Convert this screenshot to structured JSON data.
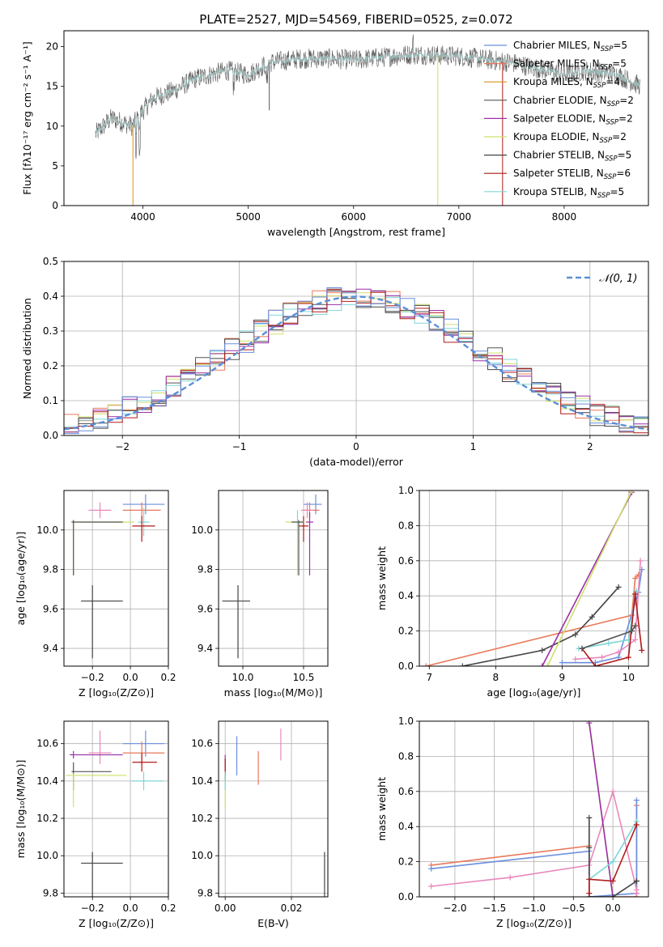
{
  "figure_title": "PLATE=2527, MJD=54569, FIBERID=0525, z=0.072",
  "colors": {
    "chabrier_miles": "#6a8fdd",
    "salpeter_miles": "#e8785a",
    "kroupa_miles": "#d9901a",
    "chabrier_elodie": "#555555",
    "salpeter_elodie": "#9a2fa8",
    "kroupa_elodie": "#cfe06a",
    "chabrier_stelib": "#444444",
    "salpeter_stelib": "#b01818",
    "kroupa_stelib": "#7fd6d6",
    "gaussian": "#5b8fd6",
    "pink": "#e888bb",
    "grid": "#b0b0b0"
  },
  "chart_data": [
    {
      "id": "spectrum",
      "type": "line",
      "xlabel": "wavelength [Angstrom, rest frame]",
      "ylabel": "Flux [fλ10⁻¹⁷ erg cm⁻² s⁻¹ A⁻¹]",
      "xlim": [
        3250,
        8800
      ],
      "ylim": [
        0,
        22
      ],
      "xticks": [
        4000,
        5000,
        6000,
        7000,
        8000
      ],
      "yticks": [
        0,
        5,
        10,
        15,
        20
      ],
      "legend_position": "top-right",
      "legend": [
        "Chabrier MILES, NSSP=5",
        "Salpeter MILES, NSSP=5",
        "Kroupa MILES, NSSP=4",
        "Chabrier ELODIE, NSSP=2",
        "Salpeter ELODIE, NSSP=2",
        "Kroupa ELODIE, NSSP=2",
        "Chabrier STELIB, NSSP=5",
        "Salpeter STELIB, NSSP=6",
        "Kroupa STELIB, NSSP=5"
      ],
      "continuum": [
        [
          3550,
          9
        ],
        [
          3700,
          11
        ],
        [
          3900,
          10
        ],
        [
          4000,
          12
        ],
        [
          4100,
          13.5
        ],
        [
          4300,
          14.5
        ],
        [
          4500,
          16
        ],
        [
          4800,
          17
        ],
        [
          5000,
          16.5
        ],
        [
          5200,
          18
        ],
        [
          5500,
          18.5
        ],
        [
          5800,
          18.5
        ],
        [
          6000,
          18.3
        ],
        [
          6300,
          18.7
        ],
        [
          6500,
          19
        ],
        [
          6700,
          19
        ],
        [
          7000,
          18.8
        ],
        [
          7500,
          18
        ],
        [
          8000,
          16.5
        ],
        [
          8200,
          17
        ],
        [
          8500,
          16.5
        ],
        [
          8700,
          15.2
        ]
      ]
    },
    {
      "id": "residuals",
      "type": "histogram",
      "xlabel": "(data-model)/error",
      "ylabel": "Normed distribution",
      "xlim": [
        -2.5,
        2.5
      ],
      "ylim": [
        0,
        0.5
      ],
      "xticks": [
        -2,
        -1,
        0,
        1,
        2
      ],
      "yticks": [
        0.0,
        0.1,
        0.2,
        0.3,
        0.4,
        0.5
      ],
      "legend": [
        "𝒩(0, 1)"
      ],
      "legend_position": "top-right",
      "bins": [
        -2.5,
        -2.375,
        -2.25,
        -2.125,
        -2,
        -1.875,
        -1.75,
        -1.625,
        -1.5,
        -1.375,
        -1.25,
        -1.125,
        -1,
        -0.875,
        -0.75,
        -0.625,
        -0.5,
        -0.375,
        -0.25,
        -0.125,
        0,
        0.125,
        0.25,
        0.375,
        0.5,
        0.625,
        0.75,
        0.875,
        1,
        1.125,
        1.25,
        1.375,
        1.5,
        1.625,
        1.75,
        1.875,
        2,
        2.125,
        2.25,
        2.375,
        2.5
      ]
    },
    {
      "id": "age_vs_Z",
      "type": "scatter",
      "xlabel": "Z [log₁₀(Z/Z⊙)]",
      "ylabel": "age  [log₁₀(age/yr)]",
      "xlim": [
        -0.35,
        0.2
      ],
      "ylim": [
        9.31,
        10.2
      ],
      "xticks": [
        -0.2,
        0.0,
        0.2
      ],
      "yticks": [
        9.4,
        9.6,
        9.8,
        10.0
      ],
      "points": [
        {
          "c": "chabrier_miles",
          "x": 0.08,
          "xe": [
            -0.12,
            0.1
          ],
          "y": 10.13,
          "ye": [
            -0.05,
            0.05
          ]
        },
        {
          "c": "salpeter_miles",
          "x": 0.06,
          "xe": [
            -0.1,
            0.1
          ],
          "y": 10.1,
          "ye": [
            -0.04,
            0.04
          ]
        },
        {
          "c": "pink",
          "x": -0.16,
          "xe": [
            -0.06,
            0.06
          ],
          "y": 10.1,
          "ye": [
            -0.04,
            0.04
          ]
        },
        {
          "c": "kroupa_stelib",
          "x": 0.07,
          "xe": [
            -0.03,
            0.03
          ],
          "y": 10.04,
          "ye": [
            -0.07,
            0.07
          ]
        },
        {
          "c": "salpeter_stelib",
          "x": 0.06,
          "xe": [
            -0.05,
            0.07
          ],
          "y": 10.02,
          "ye": [
            -0.08,
            0.05
          ]
        },
        {
          "c": "kroupa_elodie",
          "x": -0.3,
          "xe": [
            -0.01,
            0.32
          ],
          "y": 10.04,
          "ye": [
            -0.27,
            0.01
          ]
        },
        {
          "c": "chabrier_elodie",
          "x": -0.3,
          "xe": [
            -0.01,
            0.26
          ],
          "y": 10.04,
          "ye": [
            -0.27,
            0.01
          ]
        },
        {
          "c": "chabrier_stelib",
          "x": -0.2,
          "xe": [
            -0.06,
            0.16
          ],
          "y": 9.64,
          "ye": [
            -0.29,
            0.08
          ]
        }
      ]
    },
    {
      "id": "age_vs_mass",
      "type": "scatter",
      "xlabel": "mass [log₁₀(M/M⊙)]",
      "ylabel": "",
      "xlim": [
        9.8,
        10.7
      ],
      "ylim": [
        9.31,
        10.2
      ],
      "xticks": [
        10.0,
        10.5
      ],
      "yticks": [
        9.4,
        9.6,
        9.8,
        10.0
      ],
      "points": [
        {
          "c": "chabrier_miles",
          "x": 10.6,
          "xe": [
            -0.1,
            0.05
          ],
          "y": 10.13,
          "ye": [
            -0.05,
            0.05
          ]
        },
        {
          "c": "salpeter_miles",
          "x": 10.55,
          "xe": [
            -0.05,
            0.08
          ],
          "y": 10.1,
          "ye": [
            -0.04,
            0.04
          ]
        },
        {
          "c": "pink",
          "x": 10.53,
          "xe": [
            -0.05,
            0.05
          ],
          "y": 10.1,
          "ye": [
            -0.04,
            0.04
          ]
        },
        {
          "c": "kroupa_stelib",
          "x": 10.45,
          "xe": [
            -0.05,
            0.05
          ],
          "y": 10.04,
          "ye": [
            -0.06,
            0.06
          ]
        },
        {
          "c": "salpeter_elodie",
          "x": 10.55,
          "xe": [
            -0.03,
            0.03
          ],
          "y": 10.04,
          "ye": [
            -0.27,
            0.05
          ]
        },
        {
          "c": "salpeter_stelib",
          "x": 10.5,
          "xe": [
            -0.04,
            0.04
          ],
          "y": 10.02,
          "ye": [
            -0.08,
            0.05
          ]
        },
        {
          "c": "kroupa_elodie",
          "x": 10.45,
          "xe": [
            -0.1,
            0.06
          ],
          "y": 10.04,
          "ye": [
            -0.27,
            0.01
          ]
        },
        {
          "c": "chabrier_elodie",
          "x": 10.46,
          "xe": [
            -0.06,
            0.04
          ],
          "y": 10.04,
          "ye": [
            -0.27,
            0.01
          ]
        },
        {
          "c": "chabrier_stelib",
          "x": 9.96,
          "xe": [
            -0.13,
            0.1
          ],
          "y": 9.64,
          "ye": [
            -0.29,
            0.08
          ]
        }
      ]
    },
    {
      "id": "weight_vs_age",
      "type": "line",
      "xlabel": "age  [log₁₀(age/yr)]",
      "ylabel": "mass weight",
      "xlim": [
        6.85,
        10.3
      ],
      "ylim": [
        0,
        1
      ],
      "xticks": [
        7,
        8,
        9,
        10
      ],
      "yticks": [
        0.0,
        0.2,
        0.4,
        0.6,
        0.8,
        1.0
      ],
      "series": [
        {
          "c": "salpeter_miles",
          "x": [
            6.95,
            10.05,
            10.1,
            10.15
          ],
          "y": [
            0.0,
            0.29,
            0.5,
            0.52
          ]
        },
        {
          "c": "chabrier_stelib",
          "x": 7.5,
          "x2": [
            7.5,
            8.7,
            9.2,
            9.45,
            9.85
          ],
          "y2": [
            0.0,
            0.09,
            0.18,
            0.28,
            0.45
          ]
        },
        {
          "c": "salpeter_elodie",
          "x": [
            8.7,
            10.05
          ],
          "y": [
            0.0,
            0.99
          ]
        },
        {
          "c": "kroupa_elodie",
          "x": [
            8.78,
            10.05
          ],
          "y": [
            0.0,
            1.0
          ]
        },
        {
          "c": "chabrier_miles",
          "x": [
            9.0,
            9.5,
            9.85,
            10.15,
            10.2
          ],
          "y": [
            0.02,
            0.02,
            0.05,
            0.42,
            0.55
          ]
        },
        {
          "c": "pink",
          "x": [
            9.2,
            9.6,
            9.85,
            10.1,
            10.18
          ],
          "y": [
            0.04,
            0.05,
            0.08,
            0.15,
            0.6
          ]
        },
        {
          "c": "kroupa_stelib",
          "x": [
            9.25,
            9.7,
            10.0,
            10.12
          ],
          "y": [
            0.1,
            0.13,
            0.15,
            0.43
          ]
        },
        {
          "c": "salpeter_stelib",
          "x": [
            9.3,
            9.5,
            10.0,
            10.1,
            10.2
          ],
          "y": [
            0.1,
            0.0,
            0.05,
            0.41,
            0.09
          ]
        },
        {
          "c": "chabrier_elodie",
          "x": [
            9.3,
            10.05,
            10.1
          ],
          "y": [
            0.1,
            0.2,
            0.23
          ]
        }
      ]
    },
    {
      "id": "mass_vs_Z",
      "type": "scatter",
      "xlabel": "Z [log₁₀(Z/Z⊙)]",
      "ylabel": "mass [log₁₀(M/M⊙)]",
      "xlim": [
        -0.35,
        0.2
      ],
      "ylim": [
        9.78,
        10.72
      ],
      "xticks": [
        -0.2,
        0.0,
        0.2
      ],
      "yticks": [
        9.8,
        10.0,
        10.2,
        10.4,
        10.6
      ],
      "points": [
        {
          "c": "chabrier_miles",
          "x": 0.08,
          "xe": [
            -0.12,
            0.1
          ],
          "y": 10.6,
          "ye": [
            -0.07,
            0.07
          ]
        },
        {
          "c": "salpeter_miles",
          "x": 0.06,
          "xe": [
            -0.1,
            0.12
          ],
          "y": 10.55,
          "ye": [
            -0.06,
            0.06
          ]
        },
        {
          "c": "pink",
          "x": -0.16,
          "xe": [
            -0.06,
            0.06
          ],
          "y": 10.55,
          "ye": [
            -0.06,
            0.12
          ]
        },
        {
          "c": "salpeter_elodie",
          "x": -0.3,
          "xe": [
            -0.02,
            0.26
          ],
          "y": 10.54,
          "ye": [
            -0.02,
            0.02
          ]
        },
        {
          "c": "salpeter_stelib",
          "x": 0.06,
          "xe": [
            -0.05,
            0.08
          ],
          "y": 10.5,
          "ye": [
            -0.05,
            0.05
          ]
        },
        {
          "c": "chabrier_elodie",
          "x": -0.3,
          "xe": [
            -0.01,
            0.2
          ],
          "y": 10.45,
          "ye": [
            -0.1,
            0.05
          ]
        },
        {
          "c": "kroupa_elodie",
          "x": -0.3,
          "xe": [
            -0.04,
            0.28
          ],
          "y": 10.43,
          "ye": [
            -0.17,
            0.01
          ]
        },
        {
          "c": "kroupa_stelib",
          "x": 0.07,
          "xe": [
            -0.06,
            0.1
          ],
          "y": 10.4,
          "ye": [
            -0.05,
            0.05
          ]
        },
        {
          "c": "chabrier_stelib",
          "x": -0.2,
          "xe": [
            -0.06,
            0.16
          ],
          "y": 9.96,
          "ye": [
            -0.18,
            0.06
          ]
        }
      ]
    },
    {
      "id": "mass_vs_ebv",
      "type": "scatter",
      "xlabel": "E(B-V)",
      "ylabel": "",
      "xlim": [
        -0.002,
        0.031
      ],
      "ylim": [
        9.78,
        10.72
      ],
      "xticks": [
        0.0,
        0.02
      ],
      "yticks": [
        9.8,
        10.0,
        10.2,
        10.4,
        10.6
      ],
      "points": [
        {
          "c": "chabrier_miles",
          "x": 0.0035,
          "y": 10.6,
          "ye": [
            -0.17,
            0.04
          ]
        },
        {
          "c": "salpeter_miles",
          "x": 0.01,
          "y": 10.46,
          "ye": [
            -0.08,
            0.1
          ]
        },
        {
          "c": "pink",
          "x": 0.0168,
          "y": 10.58,
          "ye": [
            -0.07,
            0.1
          ]
        },
        {
          "c": "salpeter_elodie",
          "x": 0.0,
          "y": 10.48,
          "ye": [
            -0.06,
            0.06
          ]
        },
        {
          "c": "salpeter_stelib",
          "x": 0.0,
          "y": 10.46,
          "ye": [
            -0.06,
            0.06
          ]
        },
        {
          "c": "kroupa_elodie",
          "x": 0.0,
          "y": 10.35,
          "ye": [
            -0.1,
            0.05
          ]
        },
        {
          "c": "kroupa_stelib",
          "x": 0.0,
          "y": 10.4,
          "ye": [
            -0.05,
            0.05
          ]
        },
        {
          "c": "chabrier_stelib",
          "x": 0.03,
          "y": 9.9,
          "ye": [
            -0.12,
            0.12
          ]
        }
      ]
    },
    {
      "id": "weight_vs_Z",
      "type": "line",
      "xlabel": "Z [log₁₀(Z/Z⊙)]",
      "ylabel": "mass weight",
      "xlim": [
        -2.45,
        0.45
      ],
      "ylim": [
        0,
        1
      ],
      "xticks": [
        -2.0,
        -1.5,
        -1.0,
        -0.5,
        0.0
      ],
      "yticks": [
        0.0,
        0.2,
        0.4,
        0.6,
        0.8,
        1.0
      ],
      "series": [
        {
          "c": "salpeter_miles",
          "x": [
            -2.3,
            -0.3,
            -0.3,
            0.3,
            0.3
          ],
          "y": [
            0.18,
            0.29,
            0.0,
            0.0,
            0.52
          ]
        },
        {
          "c": "chabrier_miles",
          "x": [
            -2.3,
            -0.3,
            -0.3,
            0.3,
            0.3
          ],
          "y": [
            0.16,
            0.26,
            0.0,
            0.02,
            0.55
          ]
        },
        {
          "c": "pink",
          "x": [
            -2.3,
            -1.3,
            -0.3,
            0.0,
            0.3,
            0.3
          ],
          "y": [
            0.06,
            0.11,
            0.18,
            0.6,
            0.04,
            0.02
          ]
        },
        {
          "c": "kroupa_elodie",
          "x": [
            -0.3,
            0.0
          ],
          "y": [
            1.0,
            0.0
          ]
        },
        {
          "c": "salpeter_elodie",
          "x": [
            -0.3,
            0.0
          ],
          "y": [
            0.99,
            0.0
          ]
        },
        {
          "c": "chabrier_stelib",
          "x": [
            -0.3,
            -0.3,
            -0.3,
            0.0,
            0.3,
            0.3
          ],
          "y": [
            0.45,
            0.28,
            0.0,
            0.0,
            0.09,
            0.09
          ]
        },
        {
          "c": "kroupa_stelib",
          "x": [
            -0.3,
            0.0,
            0.3
          ],
          "y": [
            0.1,
            0.2,
            0.43
          ]
        },
        {
          "c": "salpeter_stelib",
          "x": [
            -0.3,
            -0.3,
            0.0,
            0.3
          ],
          "y": [
            0.02,
            0.1,
            0.09,
            0.41
          ]
        }
      ]
    }
  ]
}
